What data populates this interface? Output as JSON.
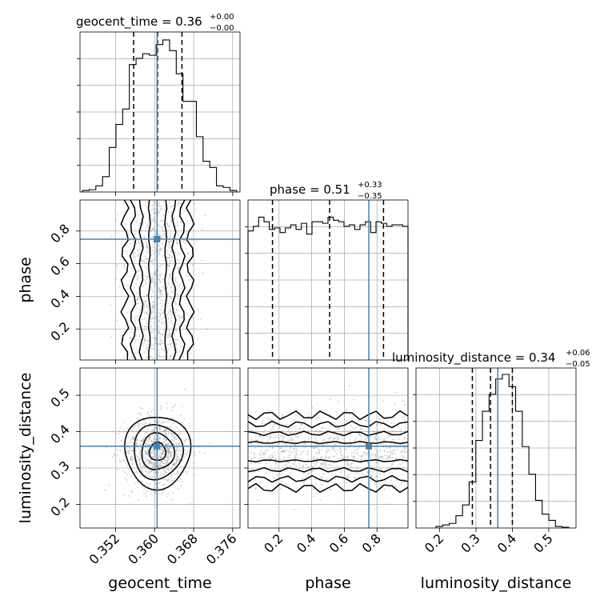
{
  "chart_data": {
    "type": "corner",
    "parameters": [
      "geocent_time",
      "phase",
      "luminosity_distance"
    ],
    "truths": {
      "geocent_time": 0.3605,
      "phase": 0.75,
      "luminosity_distance": 0.36
    },
    "ranges": {
      "geocent_time": [
        0.3447,
        0.3775
      ],
      "phase": [
        0.01,
        0.99
      ],
      "luminosity_distance": [
        0.135,
        0.575
      ]
    },
    "ticks": {
      "geocent_time": {
        "values": [
          0.352,
          0.36,
          0.368,
          0.376
        ],
        "labels": [
          "0.352",
          "0.360",
          "0.368",
          "0.376"
        ]
      },
      "phase": {
        "values": [
          0.2,
          0.4,
          0.6,
          0.8
        ],
        "labels": [
          "0.2",
          "0.4",
          "0.6",
          "0.8"
        ]
      },
      "luminosity_distance": {
        "values": [
          0.2,
          0.3,
          0.4,
          0.5
        ],
        "labels": [
          "0.2",
          "0.3",
          "0.4",
          "0.5"
        ]
      }
    },
    "titles": [
      {
        "param": "geocent_time",
        "text": "geocent_time = 0.36",
        "sup": "+0.00",
        "sub": "−0.00"
      },
      {
        "param": "phase",
        "text": "phase = 0.51",
        "sup": "+0.33",
        "sub": "−0.35"
      },
      {
        "param": "luminosity_distance",
        "text": "luminosity_distance = 0.34",
        "sup": "+0.06",
        "sub": "−0.05"
      }
    ],
    "quantiles": {
      "geocent_time": [
        0.3557,
        0.3606,
        0.3656
      ],
      "phase": [
        0.16,
        0.51,
        0.84
      ],
      "luminosity_distance": [
        0.29,
        0.34,
        0.4
      ]
    },
    "histograms": {
      "geocent_time": [
        0.01,
        0.015,
        0.04,
        0.1,
        0.29,
        0.44,
        0.54,
        0.83,
        0.87,
        0.9,
        0.89,
        0.96,
        0.99,
        0.92,
        0.77,
        0.59,
        0.59,
        0.36,
        0.2,
        0.16,
        0.04,
        0.03,
        0.01
      ],
      "phase": [
        0.84,
        0.87,
        0.93,
        0.9,
        0.85,
        0.86,
        0.83,
        0.86,
        0.88,
        0.85,
        0.89,
        0.82,
        0.9,
        0.9,
        0.89,
        0.93,
        0.91,
        0.9,
        0.87,
        0.88,
        0.85,
        0.88,
        0.9,
        0.83,
        0.9,
        0.89,
        0.87,
        0.88,
        0.88,
        0.87
      ],
      "luminosity_distance": [
        0.01,
        0.02,
        0.03,
        0.08,
        0.15,
        0.3,
        0.57,
        0.76,
        0.87,
        0.97,
        1.0,
        0.92,
        0.76,
        0.53,
        0.35,
        0.18,
        0.09,
        0.05,
        0.01,
        0.005
      ]
    }
  }
}
